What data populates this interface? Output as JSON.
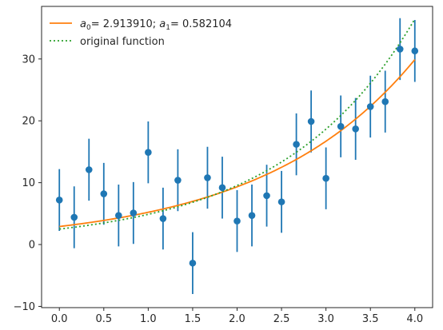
{
  "chart_data": {
    "type": "scatter",
    "title": "",
    "xlabel": "",
    "ylabel": "",
    "xlim": [
      -0.2,
      4.2
    ],
    "ylim": [
      -10.2,
      38.5
    ],
    "xticks": [
      0.0,
      0.5,
      1.0,
      1.5,
      2.0,
      2.5,
      3.0,
      3.5,
      4.0
    ],
    "xtick_labels": [
      "0.0",
      "0.5",
      "1.0",
      "1.5",
      "2.0",
      "2.5",
      "3.0",
      "3.5",
      "4.0"
    ],
    "yticks": [
      -10,
      0,
      10,
      20,
      30
    ],
    "ytick_labels": [
      "−10",
      "0",
      "10",
      "20",
      "30"
    ],
    "grid": false,
    "legend_position": "top-left",
    "colors": {
      "points": "#1f77b4",
      "fit": "#ff7f0e",
      "original": "#2ca02c",
      "axes": "#262626"
    },
    "series": [
      {
        "kind": "errorbar",
        "x": [
          0.0,
          0.1667,
          0.3333,
          0.5,
          0.6667,
          0.8333,
          1.0,
          1.1667,
          1.3333,
          1.5,
          1.6667,
          1.8333,
          2.0,
          2.1667,
          2.3333,
          2.5,
          2.6667,
          2.8333,
          3.0,
          3.1667,
          3.3333,
          3.5,
          3.6667,
          3.8333,
          4.0
        ],
        "y": [
          7.2,
          4.4,
          12.1,
          8.2,
          4.7,
          5.1,
          14.9,
          4.2,
          10.4,
          -3.0,
          10.8,
          9.2,
          3.8,
          4.7,
          7.9,
          6.9,
          16.2,
          19.9,
          10.7,
          19.1,
          18.7,
          22.3,
          23.1,
          31.6,
          31.3
        ],
        "yerr": 5.0
      },
      {
        "kind": "line",
        "name": "fit",
        "legend_parts": {
          "a0_symbol": "a",
          "a0_sub": "0",
          "a0_value": "=  2.913910; ",
          "a1_symbol": "a",
          "a1_sub": "1",
          "a1_value": "=  0.582104"
        },
        "a0": 2.91391,
        "a1": 0.582104
      },
      {
        "kind": "line",
        "name": "original function",
        "style": "dotted",
        "a0": 2.5,
        "a1": 0.67
      }
    ]
  }
}
